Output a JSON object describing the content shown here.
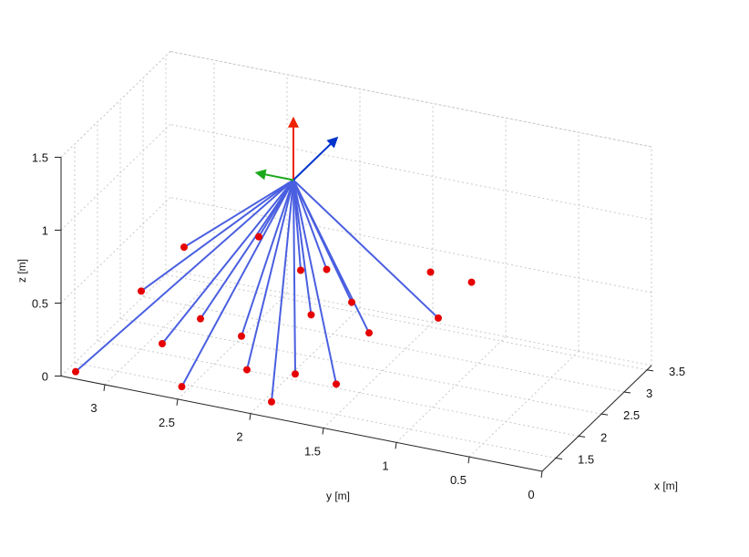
{
  "chart_data": {
    "type": "scatter3d",
    "xlabel": "x [m]",
    "ylabel": "y [m]",
    "zlabel": "z [m]",
    "xlim": [
      1.2,
      3.6
    ],
    "ylim": [
      0,
      3.3
    ],
    "zlim": [
      0,
      1.5
    ],
    "grid": true,
    "x_ticks": [
      "1.5",
      "2",
      "2.5",
      "3",
      "3.5"
    ],
    "y_ticks": [
      "3",
      "2.5",
      "2",
      "1.5",
      "1",
      "0.5",
      "0"
    ],
    "z_ticks": [
      "0",
      "0.5",
      "1",
      "1.5"
    ],
    "source_point": {
      "x": 1.5,
      "y": 1.8,
      "z": 1.55
    },
    "frame_axes_colors": {
      "x": "#0033cc",
      "y": "#1aa81a",
      "z": "#ee2200"
    },
    "ray_color": "#4a5fe0",
    "point_color": "#e60000",
    "points": [
      {
        "x": 1.2,
        "y": 3.2,
        "z": 0.05
      },
      {
        "x": 1.45,
        "y": 2.55,
        "z": 0.0
      },
      {
        "x": 1.5,
        "y": 1.95,
        "z": 0.0
      },
      {
        "x": 1.5,
        "y": 2.7,
        "z": 0.25
      },
      {
        "x": 1.6,
        "y": 2.15,
        "z": 0.15
      },
      {
        "x": 1.7,
        "y": 1.85,
        "z": 0.15
      },
      {
        "x": 1.8,
        "y": 1.6,
        "z": 0.1
      },
      {
        "x": 1.8,
        "y": 2.25,
        "z": 0.3
      },
      {
        "x": 1.7,
        "y": 2.5,
        "z": 0.4
      },
      {
        "x": 2.0,
        "y": 3.0,
        "z": 0.4
      },
      {
        "x": 2.2,
        "y": 1.5,
        "z": 0.35
      },
      {
        "x": 2.05,
        "y": 1.85,
        "z": 0.45
      },
      {
        "x": 2.3,
        "y": 2.0,
        "z": 0.65
      },
      {
        "x": 2.3,
        "y": 1.65,
        "z": 0.5
      },
      {
        "x": 2.3,
        "y": 2.8,
        "z": 0.65
      },
      {
        "x": 2.5,
        "y": 2.35,
        "z": 0.75
      },
      {
        "x": 2.55,
        "y": 1.9,
        "z": 0.6
      },
      {
        "x": 2.75,
        "y": 1.25,
        "z": 0.65
      },
      {
        "x": 2.6,
        "y": 1.15,
        "z": 0.4
      },
      {
        "x": 2.85,
        "y": 1.0,
        "z": 0.6
      }
    ],
    "rays_to": [
      0,
      1,
      2,
      3,
      4,
      5,
      6,
      7,
      8,
      9,
      10,
      11,
      12,
      13,
      14,
      15,
      16,
      18
    ]
  }
}
